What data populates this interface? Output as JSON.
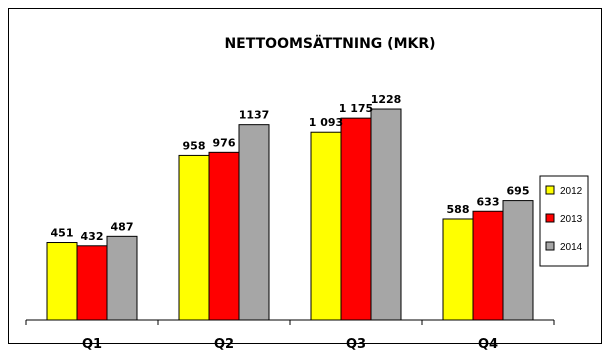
{
  "chart_data": {
    "type": "bar",
    "title": "NETTOOMSÄTTNING (MKR)",
    "xlabel": "",
    "ylabel": "",
    "categories": [
      "Q1",
      "Q2",
      "Q3",
      "Q4"
    ],
    "series": [
      {
        "name": "2012",
        "color": "#ffff00",
        "values": [
          451,
          958,
          1093,
          588
        ],
        "labels": [
          "451",
          "958",
          "1 093",
          "588"
        ]
      },
      {
        "name": "2013",
        "color": "#ff0000",
        "values": [
          432,
          976,
          1175,
          633
        ],
        "labels": [
          "432",
          "976",
          "1 175",
          "633"
        ]
      },
      {
        "name": "2014",
        "color": "#a6a6a6",
        "values": [
          487,
          1137,
          1228,
          695
        ],
        "labels": [
          "487",
          "1137",
          "1228",
          "695"
        ]
      }
    ],
    "ylim": [
      0,
      1400
    ],
    "grid": false,
    "legend_position": "right"
  }
}
